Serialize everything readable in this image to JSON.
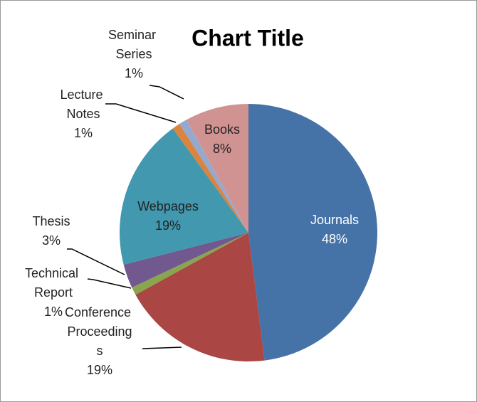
{
  "chart_data": {
    "type": "pie",
    "title": "Chart Title",
    "categories": [
      "Journals",
      "Conference Proceedings",
      "Technical Report",
      "Thesis",
      "Webpages",
      "Lecture Notes",
      "Seminar Series",
      "Books"
    ],
    "values": [
      48,
      19,
      1,
      3,
      19,
      1,
      1,
      8
    ],
    "value_labels": [
      "48%",
      "19%",
      "1%",
      "3%",
      "19%",
      "1%",
      "1%",
      "8%"
    ],
    "colors": [
      "#4572a7",
      "#aa4643",
      "#89a54e",
      "#71588f",
      "#4198af",
      "#db843d",
      "#93a9cf",
      "#d19392"
    ]
  }
}
